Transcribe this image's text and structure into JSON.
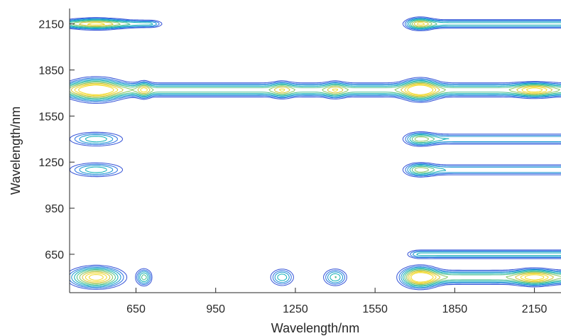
{
  "chart_data": {
    "type": "contour",
    "xlabel": "Wavelength/nm",
    "ylabel": "Wavelength/nm",
    "xlim": [
      400,
      2250
    ],
    "ylim": [
      400,
      2250
    ],
    "x_ticks": [
      650,
      950,
      1250,
      1550,
      1850,
      2150
    ],
    "y_ticks": [
      650,
      950,
      1250,
      1550,
      1850,
      2150
    ],
    "colormap": "parula",
    "line_colors": [
      "#3a57d8",
      "#2d73e3",
      "#1a97d0",
      "#11b1b6",
      "#4cc08d",
      "#8ac866",
      "#d4c53c",
      "#f2d92c"
    ],
    "grid": false,
    "peaks": [
      {
        "x": 500,
        "y": 500,
        "intensity": 1.0,
        "sx": 50,
        "sy": 34
      },
      {
        "x": 1720,
        "y": 500,
        "intensity": 0.98,
        "sx": 38,
        "sy": 35
      },
      {
        "x": 500,
        "y": 1720,
        "intensity": 0.95,
        "sx": 54,
        "sy": 38
      },
      {
        "x": 1720,
        "y": 1720,
        "intensity": 1.0,
        "sx": 38,
        "sy": 35
      },
      {
        "x": 500,
        "y": 1400,
        "intensity": 0.34,
        "sx": 56,
        "sy": 25
      },
      {
        "x": 500,
        "y": 1200,
        "intensity": 0.34,
        "sx": 56,
        "sy": 25
      },
      {
        "x": 1400,
        "y": 500,
        "intensity": 0.36,
        "sx": 24,
        "sy": 30
      },
      {
        "x": 1200,
        "y": 500,
        "intensity": 0.34,
        "sx": 24,
        "sy": 30
      },
      {
        "x": 1400,
        "y": 1720,
        "intensity": 0.34,
        "sx": 24,
        "sy": 30
      },
      {
        "x": 1200,
        "y": 1720,
        "intensity": 0.34,
        "sx": 24,
        "sy": 30
      },
      {
        "x": 1720,
        "y": 1400,
        "intensity": 0.32,
        "sx": 34,
        "sy": 25
      },
      {
        "x": 1720,
        "y": 1200,
        "intensity": 0.32,
        "sx": 34,
        "sy": 25
      },
      {
        "x": 680,
        "y": 1720,
        "intensity": 0.42,
        "sx": 16,
        "sy": 30
      },
      {
        "x": 680,
        "y": 500,
        "intensity": 0.42,
        "sx": 16,
        "sy": 30
      },
      {
        "x": 2150,
        "y": 1720,
        "intensity": 0.58,
        "sx": 42,
        "sy": 24
      },
      {
        "x": 2150,
        "y": 500,
        "intensity": 0.62,
        "sx": 42,
        "sy": 28
      },
      {
        "x": 500,
        "y": 2150,
        "intensity": 0.5,
        "sx": 62,
        "sy": 20
      },
      {
        "x": 1720,
        "y": 2150,
        "intensity": 0.5,
        "sx": 30,
        "sy": 22
      }
    ],
    "ridges": [
      {
        "xmin": 420,
        "xmax": 2250,
        "y": 1720,
        "sy": 24,
        "intensity": 0.42
      },
      {
        "xmin": 1720,
        "xmax": 2250,
        "y": 1400,
        "sy": 20,
        "intensity": 0.26
      },
      {
        "xmin": 1720,
        "xmax": 2250,
        "y": 1200,
        "sy": 20,
        "intensity": 0.26
      },
      {
        "xmin": 1720,
        "xmax": 2250,
        "y": 500,
        "sy": 24,
        "intensity": 0.44
      },
      {
        "xmin": 1720,
        "xmax": 2250,
        "y": 650,
        "sy": 16,
        "intensity": 0.3
      },
      {
        "xmin": 420,
        "xmax": 700,
        "y": 2150,
        "sy": 14,
        "intensity": 0.3
      },
      {
        "xmin": 1720,
        "xmax": 2250,
        "y": 2150,
        "sy": 16,
        "intensity": 0.3
      }
    ]
  }
}
